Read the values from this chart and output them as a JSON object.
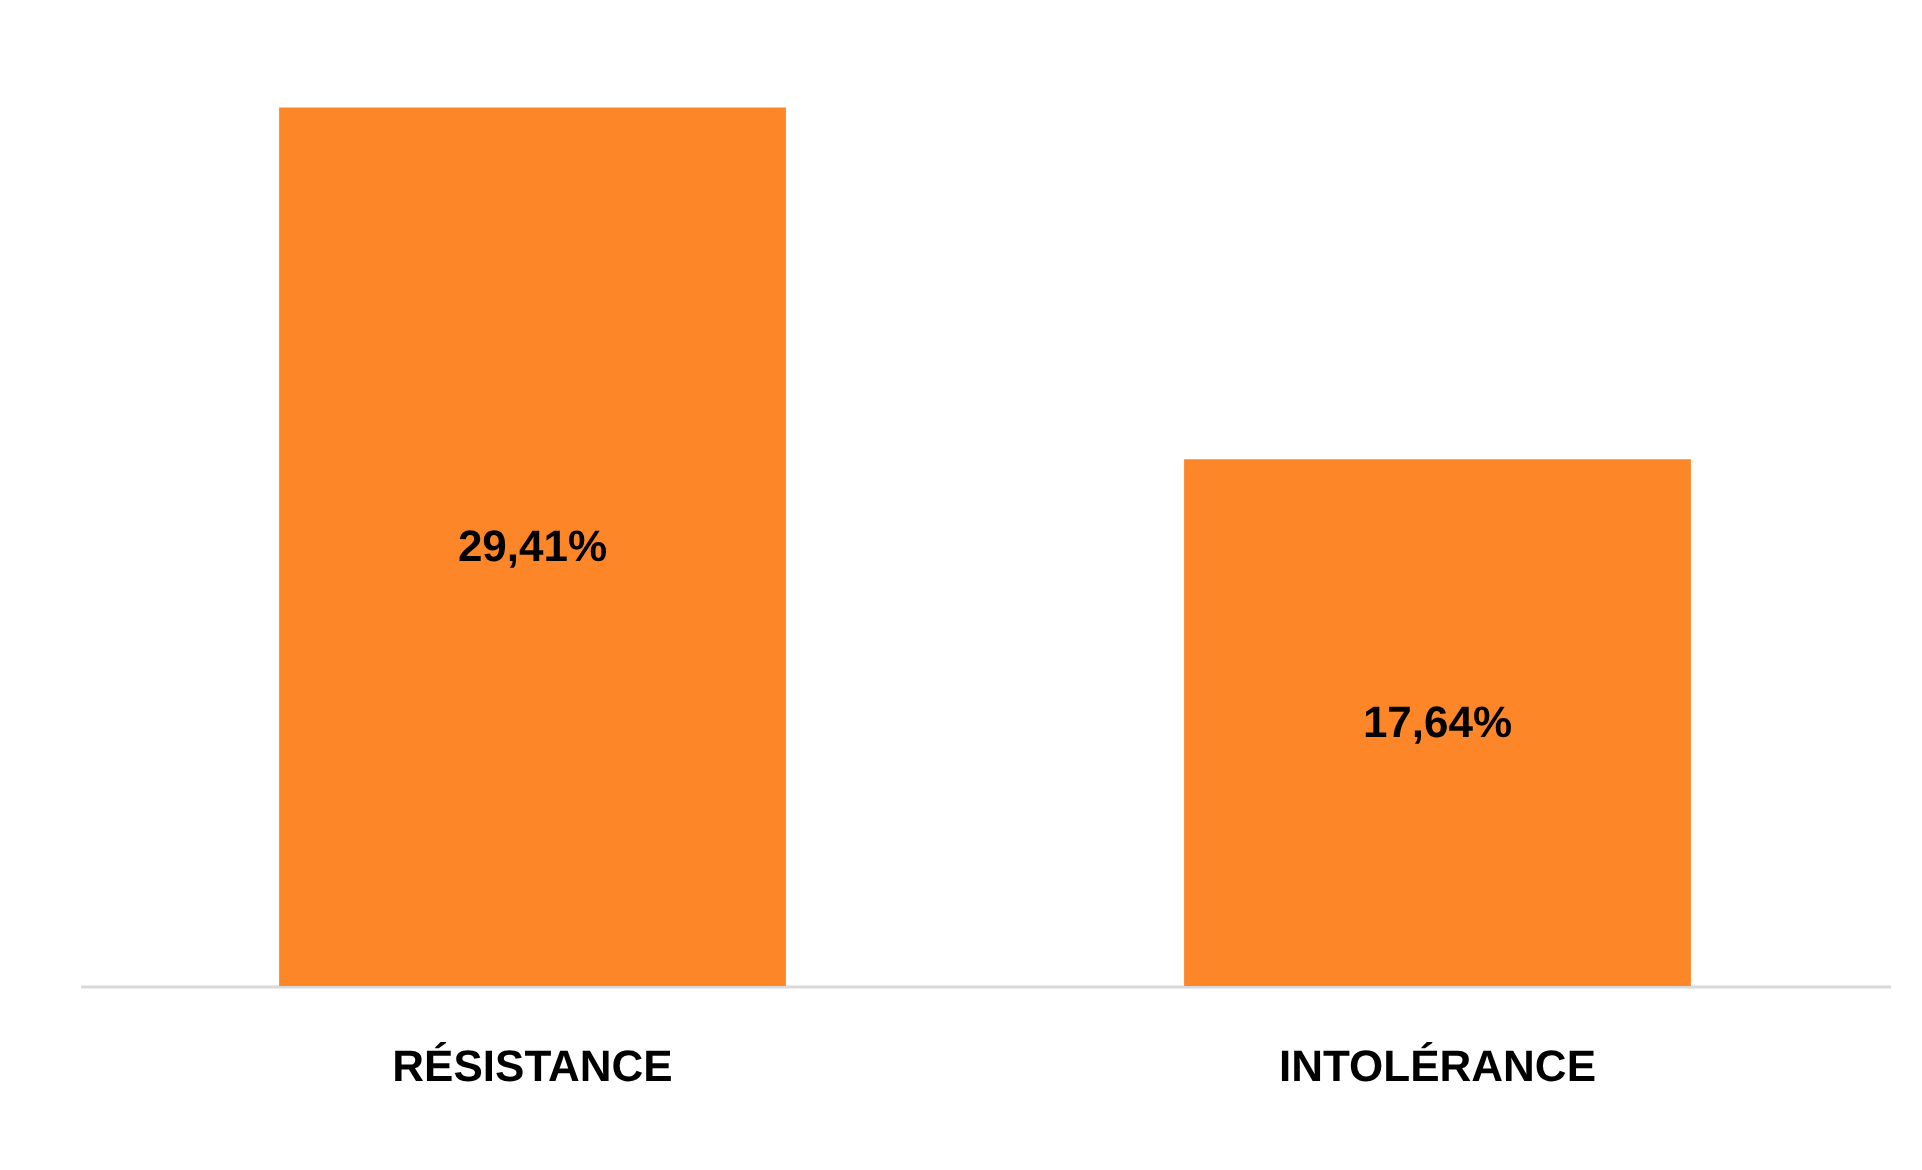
{
  "chart_data": {
    "type": "bar",
    "categories": [
      "RÉSISTANCE",
      "INTOLÉRANCE"
    ],
    "values": [
      29.41,
      17.64
    ],
    "value_labels": [
      "29,41%",
      "17,64%"
    ],
    "color": "#fd8628",
    "tick_labels": "x"
  }
}
